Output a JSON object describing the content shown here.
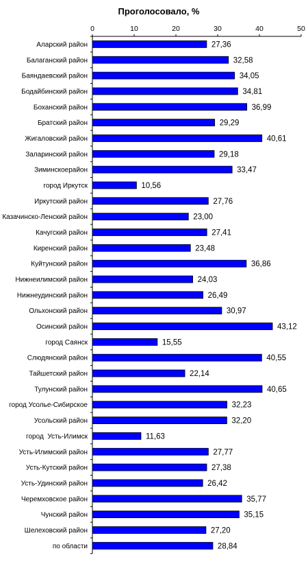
{
  "chart_data": {
    "type": "bar",
    "orientation": "horizontal",
    "title": "Проголосовало, %",
    "xlabel": "",
    "ylabel": "",
    "xlim": [
      0,
      50
    ],
    "xticks": [
      0,
      10,
      20,
      30,
      40,
      50
    ],
    "grid": false,
    "bar_color": "#0000ff",
    "categories": [
      "Аларский район",
      "Балаганский район",
      "Баяндаевский район",
      "Бодайбинский район",
      "Боханский район",
      "Братский район",
      "Жигаловский район",
      "Заларинский район",
      "Зиминскоерайон",
      "город Иркутск",
      "Иркутский район",
      "Казачинско-Ленский район",
      "Качугский район",
      "Киренский район",
      "Куйтунский район",
      "Нижнеилимский район",
      "Нижнеудинский район",
      "Ольхонский район",
      "Осинский район",
      "город Саянск",
      "Слюдянский район",
      "Тайшетский район",
      "Тулунский район",
      "город Усолье-Сибирское",
      "Усольский район",
      "город  Усть-Илимск",
      "Усть-Илимский район",
      "Усть-Кутский район",
      "Усть-Удинский район",
      "Черемховское район",
      "Чунский район",
      "Шелеховский район",
      "по области"
    ],
    "values": [
      27.36,
      32.58,
      34.05,
      34.81,
      36.99,
      29.29,
      40.61,
      29.18,
      33.47,
      10.56,
      27.76,
      23.0,
      27.41,
      23.48,
      36.86,
      24.03,
      26.49,
      30.97,
      43.12,
      15.55,
      40.55,
      22.14,
      40.65,
      32.23,
      32.2,
      11.63,
      27.77,
      27.38,
      26.42,
      35.77,
      35.15,
      27.2,
      28.84
    ],
    "value_labels": [
      "27,36",
      "32,58",
      "34,05",
      "34,81",
      "36,99",
      "29,29",
      "40,61",
      "29,18",
      "33,47",
      "10,56",
      "27,76",
      "23,00",
      "27,41",
      "23,48",
      "36,86",
      "24,03",
      "26,49",
      "30,97",
      "43,12",
      "15,55",
      "40,55",
      "22,14",
      "40,65",
      "32,23",
      "32,20",
      "11,63",
      "27,77",
      "27,38",
      "26,42",
      "35,77",
      "35,15",
      "27,20",
      "28,84"
    ]
  }
}
